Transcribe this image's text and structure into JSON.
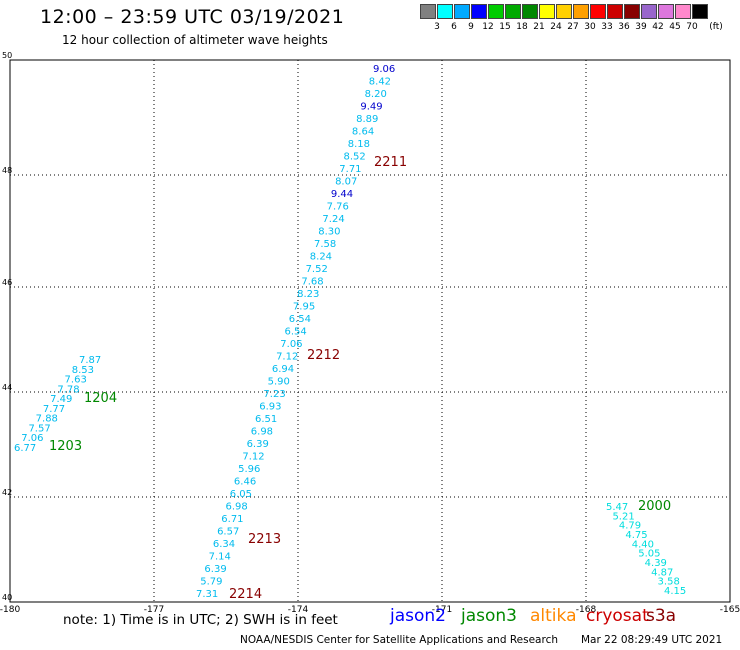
{
  "title": "12:00 – 23:59 UTC 03/19/2021",
  "subtitle": "12 hour collection of altimeter wave heights",
  "color_scale": {
    "unit": "(ft)",
    "labels": [
      "3",
      "6",
      "9",
      "12",
      "15",
      "18",
      "21",
      "24",
      "27",
      "30",
      "33",
      "36",
      "39",
      "42",
      "45",
      "70"
    ],
    "colors": [
      "#808080",
      "#00ffff",
      "#00aaff",
      "#0000ff",
      "#00cc00",
      "#00aa00",
      "#008800",
      "#ffff00",
      "#ffd000",
      "#ffa000",
      "#ff0000",
      "#cc0000",
      "#880000",
      "#9966cc",
      "#dd77dd",
      "#ff88cc",
      "#000000"
    ]
  },
  "map": {
    "x_ticks": [
      "-180",
      "-177",
      "-174",
      "-171",
      "-168",
      "-165"
    ],
    "y_ticks": [
      "40",
      "42",
      "44",
      "46",
      "48",
      "50"
    ]
  },
  "tracks": [
    {
      "id": "track-2211",
      "color": "#00bbee",
      "label": {
        "text": "2211",
        "color": "#880000"
      },
      "points": [
        {
          "v": "9.06",
          "c": "#0000cc"
        },
        {
          "v": "8.42",
          "c": "#00bbee"
        },
        {
          "v": "8.20",
          "c": "#00bbee"
        },
        {
          "v": "9.49",
          "c": "#0000cc"
        },
        {
          "v": "8.89",
          "c": "#00bbee"
        },
        {
          "v": "8.64",
          "c": "#00bbee"
        },
        {
          "v": "8.18",
          "c": "#00bbee"
        },
        {
          "v": "8.52",
          "c": "#00bbee"
        },
        {
          "v": "7.71",
          "c": "#00bbee"
        },
        {
          "v": "8.07",
          "c": "#00bbee"
        },
        {
          "v": "9.44",
          "c": "#0000cc"
        },
        {
          "v": "7.76",
          "c": "#00bbee"
        },
        {
          "v": "7.24",
          "c": "#00bbee"
        },
        {
          "v": "8.30",
          "c": "#00bbee"
        },
        {
          "v": "7.58",
          "c": "#00bbee"
        },
        {
          "v": "8.24",
          "c": "#00bbee"
        },
        {
          "v": "7.52",
          "c": "#00bbee"
        },
        {
          "v": "7.68",
          "c": "#00bbee"
        },
        {
          "v": "8.23",
          "c": "#00bbee"
        },
        {
          "v": "7.95",
          "c": "#00bbee"
        },
        {
          "v": "6.54",
          "c": "#00bbee"
        },
        {
          "v": "6.54",
          "c": "#00bbee"
        },
        {
          "v": "7.06",
          "c": "#00bbee"
        },
        {
          "v": "7.12",
          "c": "#00bbee"
        },
        {
          "v": "6.94",
          "c": "#00bbee"
        },
        {
          "v": "5.90",
          "c": "#00bbee"
        },
        {
          "v": "7.23",
          "c": "#00bbee"
        },
        {
          "v": "6.93",
          "c": "#00bbee"
        },
        {
          "v": "6.51",
          "c": "#00bbee"
        },
        {
          "v": "6.98",
          "c": "#00bbee"
        },
        {
          "v": "6.39",
          "c": "#00bbee"
        },
        {
          "v": "7.12",
          "c": "#00bbee"
        },
        {
          "v": "5.96",
          "c": "#00bbee"
        },
        {
          "v": "6.46",
          "c": "#00bbee"
        },
        {
          "v": "6.05",
          "c": "#00bbee"
        },
        {
          "v": "6.98",
          "c": "#00bbee"
        },
        {
          "v": "6.71",
          "c": "#00bbee"
        },
        {
          "v": "6.57",
          "c": "#00bbee"
        },
        {
          "v": "6.34",
          "c": "#00bbee"
        },
        {
          "v": "7.14",
          "c": "#00bbee"
        },
        {
          "v": "6.39",
          "c": "#00bbee"
        },
        {
          "v": "5.79",
          "c": "#00bbee"
        },
        {
          "v": "7.31",
          "c": "#00bbee"
        }
      ]
    },
    {
      "id": "track-1204",
      "color": "#00bbee",
      "label": {
        "text": "1204",
        "color": "#008800"
      },
      "points": [
        {
          "v": "7.87",
          "c": "#00bbee"
        },
        {
          "v": "8.53",
          "c": "#00bbee"
        },
        {
          "v": "7.63",
          "c": "#00bbee"
        },
        {
          "v": "7.78",
          "c": "#00bbee"
        },
        {
          "v": "7.49",
          "c": "#00bbee"
        },
        {
          "v": "7.77",
          "c": "#00bbee"
        },
        {
          "v": "7.88",
          "c": "#00bbee"
        },
        {
          "v": "7.57",
          "c": "#00bbee"
        },
        {
          "v": "7.06",
          "c": "#00bbee"
        },
        {
          "v": "6.77",
          "c": "#00bbee"
        }
      ]
    },
    {
      "id": "track-2000",
      "color": "#00dddd",
      "label": {
        "text": "2000",
        "color": "#008800"
      },
      "points": [
        {
          "v": "5.47",
          "c": "#00dddd"
        },
        {
          "v": "5.21",
          "c": "#00dddd"
        },
        {
          "v": "4.79",
          "c": "#00dddd"
        },
        {
          "v": "4.75",
          "c": "#00dddd"
        },
        {
          "v": "4.40",
          "c": "#00dddd"
        },
        {
          "v": "5.05",
          "c": "#00dddd"
        },
        {
          "v": "4.39",
          "c": "#00dddd"
        },
        {
          "v": "4.87",
          "c": "#00dddd"
        },
        {
          "v": "3.58",
          "c": "#00dddd"
        },
        {
          "v": "4.15",
          "c": "#00dddd"
        }
      ]
    }
  ],
  "pass_labels": [
    {
      "text": "2212",
      "color": "#880000"
    },
    {
      "text": "2213",
      "color": "#880000"
    },
    {
      "text": "2214",
      "color": "#880000"
    },
    {
      "text": "1203",
      "color": "#008800"
    }
  ],
  "footer": {
    "note": "note: 1) Time is in UTC; 2) SWH is in feet",
    "satellites": [
      {
        "name": "jason2",
        "color": "#0000ff"
      },
      {
        "name": "jason3",
        "color": "#008800"
      },
      {
        "name": "altika",
        "color": "#ff8800"
      },
      {
        "name": "cryosat",
        "color": "#cc0000"
      },
      {
        "name": "s3a",
        "color": "#880000"
      }
    ],
    "credit": "NOAA/NESDIS Center for Satellite Applications and Research",
    "timestamp": "Mar 22 08:29:49 UTC 2021"
  }
}
